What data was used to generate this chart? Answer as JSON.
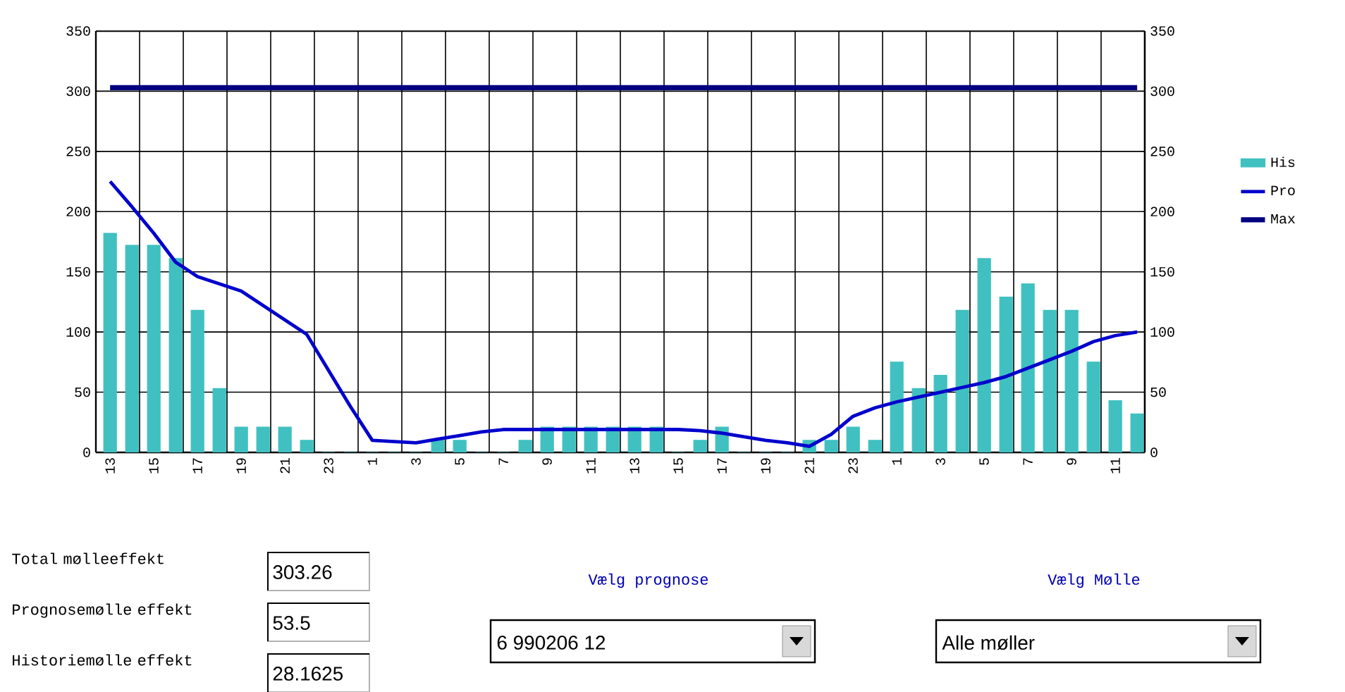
{
  "chart_data": {
    "type": "bar",
    "categories": [
      "13",
      null,
      "15",
      null,
      "17",
      null,
      "19",
      null,
      "21",
      null,
      "23",
      null,
      "1",
      null,
      "3",
      null,
      "5",
      null,
      "7",
      null,
      "9",
      null,
      "11",
      null,
      "13",
      null,
      "15",
      null,
      "17",
      null,
      "19",
      null,
      "21",
      null,
      "23",
      null,
      "1",
      null,
      "3",
      null,
      "5",
      null,
      "7",
      null,
      "9",
      null,
      "11",
      null
    ],
    "series": [
      {
        "name": "His",
        "color": "#40c0c0",
        "values": [
          182,
          172,
          172,
          161,
          118,
          53,
          21,
          21,
          21,
          10,
          0,
          0,
          0,
          0,
          0,
          10,
          10,
          0,
          0,
          10,
          21,
          21,
          21,
          21,
          21,
          21,
          0,
          10,
          21,
          0,
          0,
          0,
          10,
          10,
          21,
          10,
          75,
          53,
          64,
          118,
          161,
          129,
          140,
          118,
          118,
          75,
          43,
          32
        ]
      },
      {
        "name": "Pro",
        "type": "line",
        "color": "#0000cc",
        "values": [
          225,
          204,
          182,
          158,
          146,
          140,
          134,
          122,
          110,
          98,
          68,
          38,
          10,
          9,
          8,
          11,
          14,
          17,
          19,
          19,
          19,
          19,
          19,
          19,
          19,
          19,
          19,
          18,
          16,
          13,
          10,
          8,
          5,
          15,
          30,
          37,
          42,
          46,
          50,
          54,
          58,
          63,
          70,
          77,
          84,
          92,
          97,
          100
        ]
      },
      {
        "name": "Max",
        "type": "line",
        "color": "#000080",
        "values": [
          303,
          303,
          303,
          303,
          303,
          303,
          303,
          303,
          303,
          303,
          303,
          303,
          303,
          303,
          303,
          303,
          303,
          303,
          303,
          303,
          303,
          303,
          303,
          303,
          303,
          303,
          303,
          303,
          303,
          303,
          303,
          303,
          303,
          303,
          303,
          303,
          303,
          303,
          303,
          303,
          303,
          303,
          303,
          303,
          303,
          303,
          303,
          303
        ]
      }
    ],
    "ylim": [
      0,
      350
    ],
    "yticks": [
      0,
      50,
      100,
      150,
      200,
      250,
      300,
      350
    ],
    "y2lim": [
      0,
      350
    ],
    "y2ticks": [
      0,
      50,
      100,
      150,
      200,
      250,
      300,
      350
    ],
    "grid": true,
    "legend": "right",
    "marker": "none",
    "line_style": "solid",
    "annotations": [
      "Total mølleeffekt",
      "303.26",
      "Prognosemølle effekt",
      "53.5",
      "Historiemølle effekt",
      "28.1625",
      "Vælg prognose",
      "6   990206 12",
      "Vælg Mølle",
      "Alle møller"
    ]
  }
}
